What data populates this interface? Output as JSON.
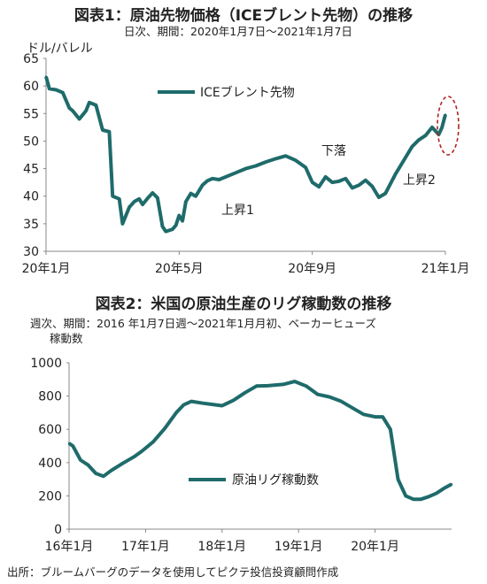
{
  "chart1": {
    "title": "図表1：原油先物価格（ICEブレント先物）の推移",
    "subtitle": "日次、期間：2020年1月7日～2021年1月7日",
    "unit": "ドル/バレル",
    "legend": "ICEブレント先物",
    "annotations": {
      "down": "下落",
      "up1": "上昇1",
      "up2": "上昇2"
    },
    "color": "#1f6b6b",
    "highlight_color": "#b22222"
  },
  "chart2": {
    "title": "図表2：米国の原油生産のリグ稼動数の推移",
    "subtitle1": "週次、期間：2016 年1月7日週～2021年1月月初、ベーカーヒューズ",
    "subtitle2": "稼動数",
    "legend": "原油リグ稼動数",
    "color": "#1f6b6b"
  },
  "footer": "出所：ブルームバーグのデータを使用してピクテ投信投資顧問作成",
  "chart_data": [
    {
      "type": "line",
      "title": "図表1：原油先物価格（ICEブレント先物）の推移",
      "ylabel": "ドル/バレル",
      "ylim": [
        30,
        65
      ],
      "yticks": [
        30,
        35,
        40,
        45,
        50,
        55,
        60,
        65
      ],
      "xlim": [
        0,
        12
      ],
      "xticks": [
        {
          "x": 0,
          "label": "20年1月"
        },
        {
          "x": 4,
          "label": "20年5月"
        },
        {
          "x": 8,
          "label": "20年9月"
        },
        {
          "x": 12,
          "label": "21年1月"
        }
      ],
      "grid": false,
      "legend_position": "top-center",
      "series": [
        {
          "name": "ICEブレント先物",
          "x": [
            0,
            0.1,
            0.3,
            0.5,
            0.7,
            0.8,
            1.0,
            1.2,
            1.3,
            1.5,
            1.7,
            1.9,
            2.0,
            2.2,
            2.3,
            2.5,
            2.65,
            2.8,
            2.9,
            3.05,
            3.2,
            3.35,
            3.5,
            3.6,
            3.8,
            3.9,
            4.0,
            4.1,
            4.2,
            4.35,
            4.5,
            4.7,
            4.85,
            5.0,
            5.2,
            5.4,
            5.6,
            5.8,
            6.0,
            6.3,
            6.6,
            6.9,
            7.2,
            7.5,
            7.8,
            8.0,
            8.2,
            8.4,
            8.6,
            8.8,
            9.0,
            9.2,
            9.4,
            9.6,
            9.8,
            10.0,
            10.2,
            10.5,
            10.8,
            11.0,
            11.2,
            11.4,
            11.6,
            11.8,
            11.9,
            12.0
          ],
          "values": [
            61.7,
            59.5,
            59.3,
            58.8,
            56.0,
            55.5,
            54.0,
            55.5,
            57.0,
            56.5,
            52.0,
            51.7,
            40.0,
            39.5,
            35.0,
            38.0,
            39.0,
            39.5,
            38.5,
            39.6,
            40.6,
            39.7,
            34.5,
            33.6,
            34.0,
            34.7,
            36.5,
            35.5,
            39.0,
            40.5,
            40.0,
            42.0,
            42.8,
            43.2,
            43.0,
            43.5,
            44.0,
            44.5,
            45.0,
            45.5,
            46.2,
            46.8,
            47.3,
            46.5,
            45.2,
            42.5,
            41.7,
            43.5,
            42.5,
            42.7,
            43.2,
            41.5,
            42.0,
            42.9,
            41.8,
            39.8,
            40.5,
            44.0,
            47.0,
            49.0,
            50.2,
            51.0,
            52.5,
            51.2,
            52.5,
            54.8
          ]
        }
      ]
    },
    {
      "type": "line",
      "title": "図表2：米国の原油生産のリグ稼動数の推移",
      "ylim": [
        0,
        1000
      ],
      "yticks": [
        0,
        200,
        400,
        600,
        800,
        1000
      ],
      "xlim": [
        2016.0,
        2021.0
      ],
      "xticks": [
        {
          "x": 2016,
          "label": "16年1月"
        },
        {
          "x": 2017,
          "label": "17年1月"
        },
        {
          "x": 2018,
          "label": "18年1月"
        },
        {
          "x": 2019,
          "label": "19年1月"
        },
        {
          "x": 2020,
          "label": "20年1月"
        }
      ],
      "grid": false,
      "legend_position": "bottom-center",
      "series": [
        {
          "name": "原油リグ稼動数",
          "x": [
            2016.0,
            2016.05,
            2016.15,
            2016.25,
            2016.35,
            2016.45,
            2016.55,
            2016.7,
            2016.85,
            2016.95,
            2017.1,
            2017.25,
            2017.4,
            2017.5,
            2017.6,
            2017.75,
            2017.9,
            2018.0,
            2018.15,
            2018.3,
            2018.45,
            2018.6,
            2018.8,
            2018.95,
            2019.1,
            2019.25,
            2019.4,
            2019.55,
            2019.7,
            2019.85,
            2020.0,
            2020.1,
            2020.2,
            2020.3,
            2020.4,
            2020.5,
            2020.6,
            2020.7,
            2020.8,
            2020.9,
            2021.0
          ],
          "values": [
            516,
            500,
            415,
            385,
            335,
            318,
            352,
            395,
            435,
            468,
            525,
            605,
            700,
            748,
            768,
            757,
            748,
            742,
            775,
            820,
            860,
            862,
            870,
            888,
            860,
            810,
            795,
            770,
            730,
            690,
            675,
            675,
            600,
            300,
            200,
            180,
            180,
            195,
            215,
            245,
            270
          ]
        }
      ]
    }
  ]
}
